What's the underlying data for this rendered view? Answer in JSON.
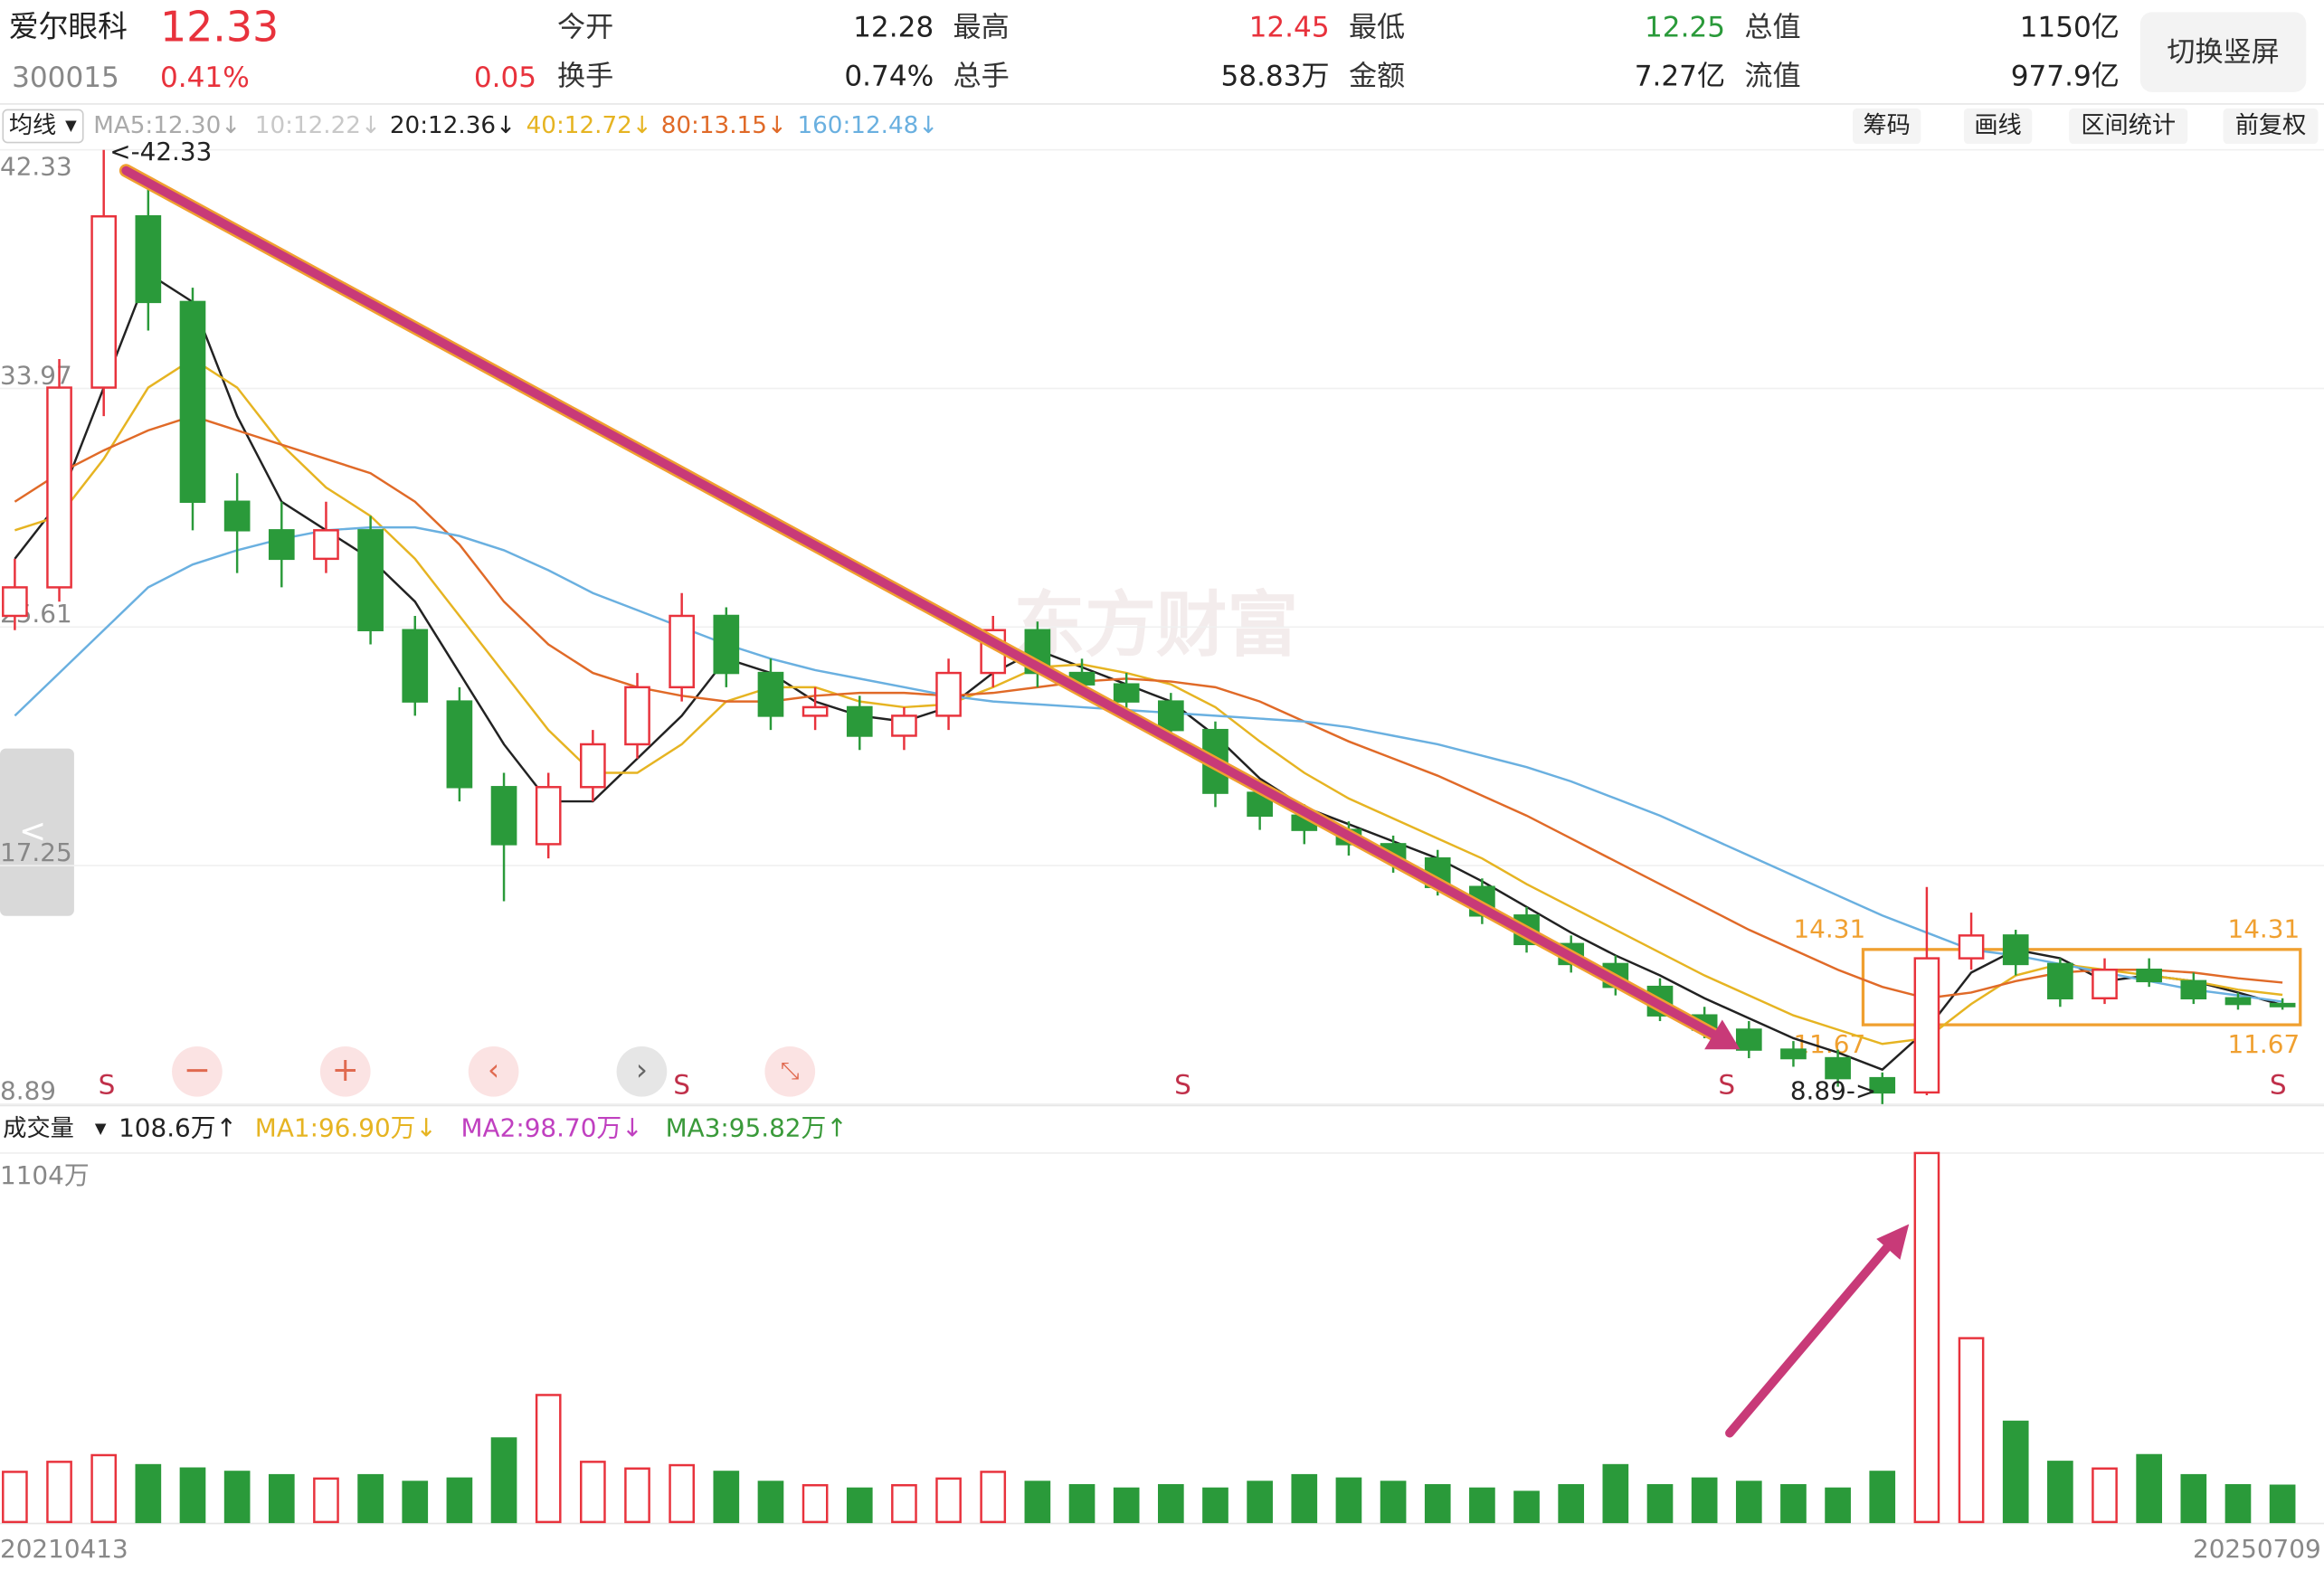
{
  "header": {
    "name": "爱尔眼科",
    "price": 12.33,
    "code": "300015",
    "change_pct": "0.41%",
    "change": 0.05,
    "fields": [
      {
        "label": "今开",
        "value": 12.28,
        "color": "#222222"
      },
      {
        "label": "最高",
        "value": 12.45,
        "color": "#e8323c"
      },
      {
        "label": "最低",
        "value": 12.25,
        "color": "#2a9a3a"
      },
      {
        "label": "总值",
        "value": "1150亿",
        "color": "#222222"
      },
      {
        "label": "换手",
        "value": "0.74%",
        "color": "#222222"
      },
      {
        "label": "总手",
        "value": "58.83万",
        "color": "#222222"
      },
      {
        "label": "金额",
        "value": "7.27亿",
        "color": "#222222"
      },
      {
        "label": "流值",
        "value": "977.9亿",
        "color": "#222222"
      }
    ],
    "button": "切换竖屏"
  },
  "ma_bar": {
    "selector": "均线",
    "items": [
      {
        "text": "MA5:12.30↓",
        "color": "#aaaaaa"
      },
      {
        "text": "10:12.22↓",
        "color": "#c8c8c8"
      },
      {
        "text": "20:12.36↓",
        "color": "#222222"
      },
      {
        "text": "40:12.72↓",
        "color": "#e6b422"
      },
      {
        "text": "80:13.15↓",
        "color": "#e06a28"
      },
      {
        "text": "160:12.48↓",
        "color": "#6ab0e0"
      }
    ],
    "tools": [
      "筹码",
      "画线",
      "区间统计",
      "前复权"
    ]
  },
  "vol_bar": {
    "selector": "成交量",
    "items": [
      {
        "text": "108.6万↑",
        "color": "#222222"
      },
      {
        "text": "MA1:96.90万↓",
        "color": "#e6b422"
      },
      {
        "text": "MA2:98.70万↓",
        "color": "#c040c0"
      },
      {
        "text": "MA3:95.82万↑",
        "color": "#3a9a3a"
      }
    ]
  },
  "watermark": "东方财富",
  "markers": [
    "S",
    "S",
    "S",
    "S",
    "S"
  ],
  "chart_data": [
    {
      "type": "candlestick",
      "categories": [
        "20210413",
        null,
        null,
        null,
        null,
        null,
        null,
        null,
        null,
        null,
        null,
        null,
        null,
        null,
        null,
        null,
        null,
        null,
        null,
        null,
        null,
        null,
        null,
        null,
        null,
        null,
        null,
        null,
        null,
        null,
        null,
        null,
        null,
        null,
        null,
        null,
        null,
        null,
        null,
        null,
        null,
        null,
        null,
        null,
        null,
        null,
        null,
        null,
        null,
        null,
        null,
        "20250709"
      ],
      "open": [
        26,
        27,
        34,
        40,
        37,
        30,
        29,
        28,
        29,
        25.5,
        23,
        20,
        18,
        20,
        21.5,
        23.5,
        26,
        24,
        22.5,
        22.8,
        21.8,
        22.5,
        24,
        25.5,
        24,
        23.6,
        23,
        22,
        19.8,
        19,
        18.5,
        18,
        17.5,
        16.5,
        15.5,
        14.5,
        13.8,
        13,
        12,
        11.5,
        10.8,
        10.5,
        9.8,
        9.3,
        14,
        14.8,
        13.8,
        12.6,
        13.6,
        13.2,
        12.6,
        12.4
      ],
      "high": [
        28,
        35,
        42.33,
        41,
        37.5,
        31,
        30,
        30,
        29.5,
        26,
        23.5,
        20.5,
        20.5,
        22,
        24,
        26.8,
        26.3,
        24.5,
        23.5,
        23.2,
        22.8,
        24.5,
        26,
        25.8,
        24.5,
        24,
        23.3,
        22.3,
        20.2,
        19.4,
        18.8,
        18.3,
        17.8,
        16.8,
        15.8,
        14.8,
        14.1,
        13.3,
        12.3,
        11.8,
        11.1,
        10.8,
        10,
        16.5,
        15.6,
        15,
        14,
        14,
        14,
        13.5,
        12.8,
        12.6
      ],
      "low": [
        25.5,
        26.5,
        33,
        36,
        29,
        27.5,
        27,
        27.5,
        25,
        22.5,
        19.5,
        16,
        17.5,
        19.5,
        21,
        23,
        23.5,
        22,
        22,
        21.3,
        21.3,
        22,
        23.5,
        23.5,
        23.2,
        22.5,
        21.5,
        19.3,
        18.5,
        18,
        17.6,
        17,
        16.2,
        15.2,
        14.2,
        13.5,
        12.7,
        11.8,
        11.2,
        10.5,
        10.2,
        9.5,
        8.89,
        9.2,
        13.6,
        13.4,
        12.3,
        12.4,
        13,
        12.4,
        12.2,
        12.2
      ],
      "close": [
        27,
        34,
        40,
        37,
        30,
        29,
        28,
        29,
        25.5,
        23,
        20,
        18,
        20,
        21.5,
        23.5,
        26,
        24,
        22.5,
        22.8,
        21.8,
        22.5,
        24,
        25.5,
        24,
        23.6,
        23,
        22,
        19.8,
        19,
        18.5,
        18,
        17.5,
        16.5,
        15.5,
        14.5,
        13.8,
        13,
        12,
        11.5,
        10.8,
        10.5,
        9.8,
        9.3,
        14,
        14.8,
        13.8,
        12.6,
        13.6,
        13.2,
        12.6,
        12.4,
        12.33
      ],
      "up_color": "#e8323c",
      "down_color": "#2a9a3a",
      "series": [
        {
          "color": "#222222",
          "values": [
            28,
            30,
            34,
            38,
            37,
            33,
            30,
            29,
            28,
            26.5,
            24,
            21.5,
            19.5,
            19.5,
            21,
            22.5,
            24.5,
            24,
            23,
            22.5,
            22.3,
            22.8,
            24,
            24.8,
            24.2,
            23.6,
            23,
            21.8,
            20.3,
            19.3,
            18.7,
            18.1,
            17.5,
            16.7,
            15.8,
            14.9,
            14.1,
            13.4,
            12.6,
            11.9,
            11.2,
            10.7,
            10.1,
            11.5,
            13.5,
            14.3,
            14,
            13.2,
            13.4,
            13.2,
            12.8,
            12.36
          ]
        },
        {
          "color": "#e6b422",
          "values": [
            29,
            29.5,
            31.5,
            34,
            35,
            34,
            32,
            30.5,
            29.5,
            28,
            26,
            24,
            22,
            20.5,
            20.5,
            21.5,
            23,
            23.5,
            23.5,
            23,
            22.8,
            22.9,
            23.5,
            24.2,
            24.3,
            24,
            23.6,
            22.8,
            21.6,
            20.5,
            19.6,
            18.9,
            18.2,
            17.5,
            16.6,
            15.8,
            15,
            14.2,
            13.4,
            12.7,
            12,
            11.5,
            11,
            11.2,
            12.4,
            13.4,
            13.8,
            13.6,
            13.4,
            13.2,
            12.9,
            12.72
          ]
        },
        {
          "color": "#e06a28",
          "values": [
            30,
            31,
            31.8,
            32.5,
            33,
            32.5,
            32,
            31.5,
            31,
            30,
            28.5,
            26.5,
            25,
            24,
            23.5,
            23.2,
            23,
            23,
            23.2,
            23.3,
            23.3,
            23.2,
            23.3,
            23.5,
            23.7,
            23.8,
            23.7,
            23.5,
            23,
            22.3,
            21.6,
            21,
            20.4,
            19.7,
            19,
            18.2,
            17.4,
            16.6,
            15.8,
            15,
            14.3,
            13.6,
            13,
            12.6,
            12.8,
            13.2,
            13.5,
            13.6,
            13.6,
            13.5,
            13.3,
            13.15
          ]
        },
        {
          "color": "#6ab0e0",
          "values": [
            22.5,
            24,
            25.5,
            27,
            27.8,
            28.3,
            28.7,
            29,
            29.1,
            29.1,
            28.8,
            28.3,
            27.6,
            26.8,
            26.2,
            25.6,
            25,
            24.5,
            24.1,
            23.8,
            23.5,
            23.2,
            23,
            22.9,
            22.8,
            22.7,
            22.6,
            22.5,
            22.4,
            22.3,
            22.1,
            21.8,
            21.5,
            21.1,
            20.7,
            20.2,
            19.6,
            19,
            18.3,
            17.6,
            16.9,
            16.2,
            15.5,
            14.9,
            14.3,
            14.1,
            13.8,
            13.5,
            13.2,
            12.9,
            12.7,
            12.48
          ]
        }
      ],
      "ylim": [
        8.89,
        42.33
      ],
      "yticks": [
        42.33,
        33.97,
        25.61,
        17.25,
        8.89
      ],
      "grid": true,
      "annotations": {
        "high_label": "<-42.33",
        "low_label": "8.89->"
      },
      "box": {
        "top": 14.31,
        "bottom": 11.67,
        "color": "#f0a030"
      }
    },
    {
      "type": "bar",
      "values": [
        150,
        180,
        200,
        170,
        160,
        150,
        140,
        130,
        140,
        120,
        130,
        250,
        380,
        180,
        160,
        170,
        150,
        120,
        110,
        100,
        110,
        130,
        150,
        120,
        110,
        100,
        110,
        100,
        120,
        140,
        130,
        120,
        110,
        100,
        90,
        110,
        170,
        110,
        130,
        120,
        110,
        100,
        150,
        1104,
        550,
        300,
        180,
        160,
        200,
        140,
        110,
        108.6
      ],
      "ylim": [
        0,
        1104
      ],
      "yticks": [
        {
          "value": 1104,
          "label": "1104万"
        }
      ]
    }
  ]
}
